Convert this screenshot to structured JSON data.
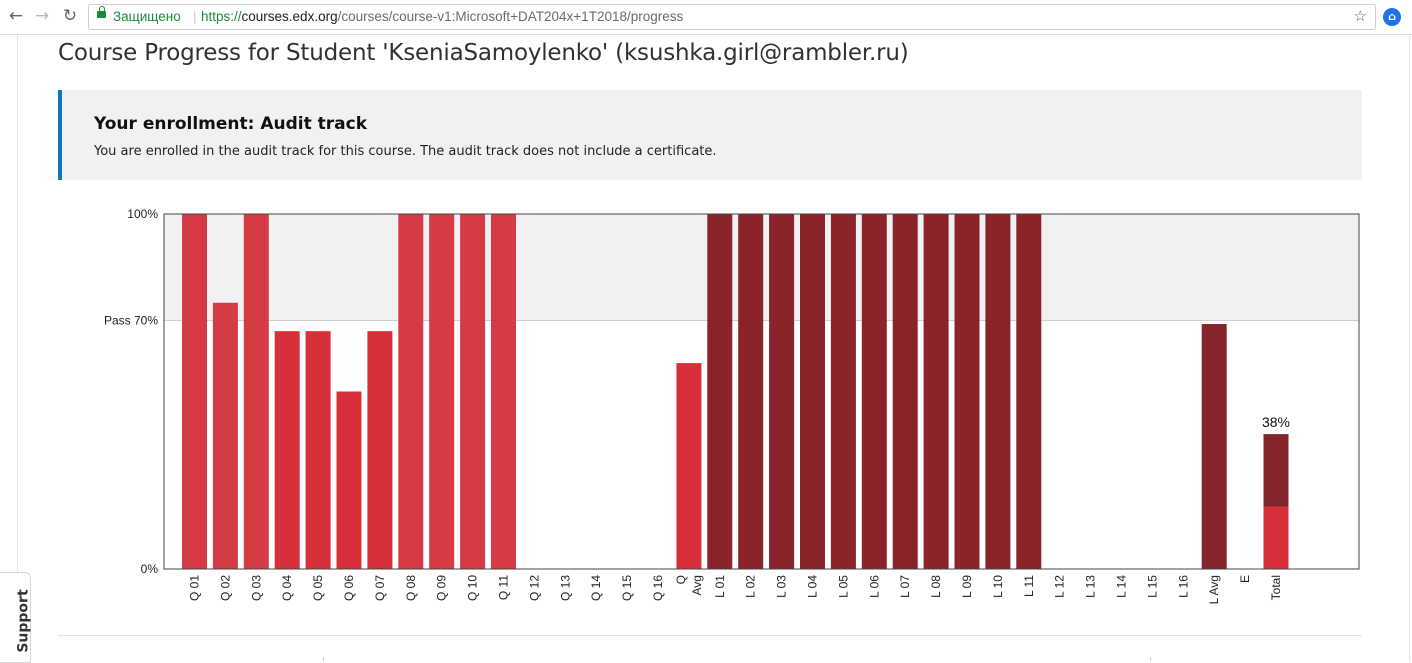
{
  "browser": {
    "secure_label": "Защищено",
    "url_scheme": "https://",
    "url_host": "courses.edx.org",
    "url_path": "/courses/course-v1:Microsoft+DAT204x+1T2018/progress"
  },
  "page": {
    "title": "Course Progress for Student 'KseniaSamoylenko' (ksushka.girl@rambler.ru)"
  },
  "enrollment": {
    "title": "Your enrollment: Audit track",
    "text": "You are enrolled in the audit track for this course. The audit track does not include a certificate."
  },
  "support": {
    "label": "Support"
  },
  "chart_data": {
    "type": "bar",
    "ylim": [
      0,
      100
    ],
    "y_tick_labels": [
      "100%",
      "Pass 70%",
      "0%"
    ],
    "pass_threshold": 70,
    "categories": [
      "Q 01",
      "Q 02",
      "Q 03",
      "Q 04",
      "Q 05",
      "Q 06",
      "Q 07",
      "Q 08",
      "Q 09",
      "Q 10",
      "Q 11",
      "Q 12",
      "Q 13",
      "Q 14",
      "Q 15",
      "Q 16",
      "Q Avg",
      "L 01",
      "L 02",
      "L 03",
      "L 04",
      "L 05",
      "L 06",
      "L 07",
      "L 08",
      "L 09",
      "L 10",
      "L 11",
      "L 12",
      "L 13",
      "L 14",
      "L 15",
      "L 16",
      "L Avg",
      "E",
      "Total"
    ],
    "values": [
      100,
      75,
      100,
      67,
      67,
      50,
      67,
      100,
      100,
      100,
      100,
      0,
      0,
      0,
      0,
      0,
      58,
      100,
      100,
      100,
      100,
      100,
      100,
      100,
      100,
      100,
      100,
      100,
      0,
      0,
      0,
      0,
      0,
      69,
      0,
      38
    ],
    "total_breakdown": {
      "quizzes": 17.5,
      "labs": 20.5
    },
    "total_label": "38%",
    "colors": {
      "quiz": "#d73038",
      "quiz_pass": "#d53b45",
      "lab": "#84252c",
      "lab_pass": "#8b232b",
      "pass_band": "#f1f1f1"
    }
  }
}
